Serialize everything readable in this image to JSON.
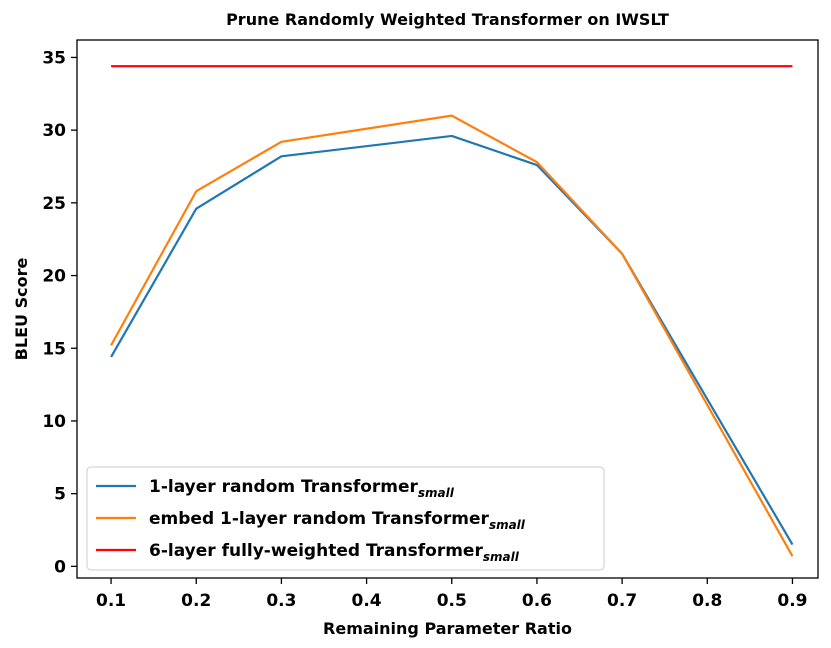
{
  "chart_data": {
    "type": "line",
    "title": "Prune Randomly Weighted Transformer on IWSLT",
    "xlabel": "Remaining Parameter Ratio",
    "ylabel": "BLEU Score",
    "x": [
      0.1,
      0.2,
      0.3,
      0.4,
      0.5,
      0.6,
      0.7,
      0.8,
      0.9
    ],
    "x_ticks": [
      "0.1",
      "0.2",
      "0.3",
      "0.4",
      "0.5",
      "0.6",
      "0.7",
      "0.8",
      "0.9"
    ],
    "y_ticks": [
      "0",
      "5",
      "10",
      "15",
      "20",
      "25",
      "30",
      "35"
    ],
    "xlim": [
      0.06,
      0.93
    ],
    "ylim": [
      -0.8,
      36.2
    ],
    "grid": false,
    "legend_position": "bottom-left",
    "series": [
      {
        "name": "1-layer random Transformer",
        "name_subscript": "small",
        "color": "#1f77b4",
        "x": [
          0.1,
          0.2,
          0.3,
          0.5,
          0.6,
          0.7,
          0.9
        ],
        "values": [
          14.4,
          24.6,
          28.2,
          29.6,
          27.6,
          21.5,
          1.5
        ]
      },
      {
        "name": "embed 1-layer random Transformer",
        "name_subscript": "small",
        "color": "#ff7f0e",
        "x": [
          0.1,
          0.2,
          0.3,
          0.5,
          0.6,
          0.7,
          0.9
        ],
        "values": [
          15.2,
          25.8,
          29.2,
          31.0,
          27.8,
          21.5,
          0.7
        ]
      },
      {
        "name": "6-layer fully-weighted Transformer",
        "name_subscript": "small",
        "color": "#ff0000",
        "x": [
          0.1,
          0.9
        ],
        "values": [
          34.4,
          34.4
        ]
      }
    ]
  }
}
